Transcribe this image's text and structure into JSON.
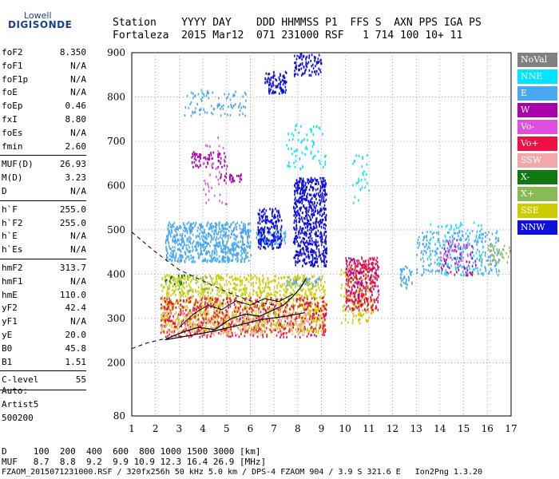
{
  "logo": {
    "top": "Lowell",
    "main": "DIGISONDE"
  },
  "header": {
    "line1": "Station    YYYY DAY    DDD HHMMSS P1  FFS S  AXN PPS IGA PS",
    "line2": "Fortaleza  2015 Mar12  071 231000 RSF   1 714 100 10+ 11"
  },
  "params": {
    "g1": [
      {
        "name": "foF2",
        "value": "8.350"
      },
      {
        "name": "foF1",
        "value": "N/A"
      },
      {
        "name": "foF1p",
        "value": "N/A"
      },
      {
        "name": "foE",
        "value": "N/A"
      },
      {
        "name": "foEp",
        "value": "0.46"
      },
      {
        "name": "fxI",
        "value": "8.80"
      },
      {
        "name": "foEs",
        "value": "N/A"
      },
      {
        "name": "fmin",
        "value": "2.60"
      }
    ],
    "g2": [
      {
        "name": "MUF(D)",
        "value": "26.93"
      },
      {
        "name": "M(D)",
        "value": "3.23"
      },
      {
        "name": "D",
        "value": "N/A"
      }
    ],
    "g3": [
      {
        "name": "h`F",
        "value": "255.0"
      },
      {
        "name": "h`F2",
        "value": "255.0"
      },
      {
        "name": "h`E",
        "value": "N/A"
      },
      {
        "name": "h`Es",
        "value": "N/A"
      }
    ],
    "g4": [
      {
        "name": "hmF2",
        "value": "313.7"
      },
      {
        "name": "hmF1",
        "value": "N/A"
      },
      {
        "name": "hmE",
        "value": "110.0"
      },
      {
        "name": "yF2",
        "value": "42.4"
      },
      {
        "name": "yF1",
        "value": "N/A"
      },
      {
        "name": "yE",
        "value": "20.0"
      },
      {
        "name": "B0",
        "value": "45.8"
      },
      {
        "name": "B1",
        "value": "1.51"
      }
    ],
    "g5": [
      {
        "name": "C-level",
        "value": "55"
      }
    ]
  },
  "side_info": {
    "line1": "Auto:",
    "line2": "Artist5",
    "line3": "500200"
  },
  "legend": [
    {
      "label": "NoVal",
      "color": "#808080"
    },
    {
      "label": "NNE",
      "color": "#00e5ff"
    },
    {
      "label": "E",
      "color": "#4aa8f0"
    },
    {
      "label": "W",
      "color": "#aa00aa"
    },
    {
      "label": "Vo-",
      "color": "#e050e0"
    },
    {
      "label": "Vo+",
      "color": "#ee1144"
    },
    {
      "label": "SSW",
      "color": "#f2a8a8"
    },
    {
      "label": "X-",
      "color": "#117711"
    },
    {
      "label": "X+",
      "color": "#88bb55"
    },
    {
      "label": "SSE",
      "color": "#cccc00"
    },
    {
      "label": "NNW",
      "color": "#1010dd"
    }
  ],
  "bottom": {
    "d_line": "D     100  200  400  600  800 1000 1500 3000 [km]",
    "muf_line": "MUF   8.7  8.8  9.2  9.9 10.9 12.3 16.4 26.9 [MHz]",
    "file_line": "FZAOM_2015071231000.RSF / 320fx256h 50 kHz 5.0 km / DPS-4 FZAOM 904 / 3.9 S 321.6 E   Ion2Png 1.3.20"
  },
  "chart_data": {
    "type": "scatter",
    "title": "",
    "xlabel": "",
    "ylabel": "",
    "xlim": [
      1,
      17
    ],
    "ylim": [
      80,
      900
    ],
    "x_ticks": [
      1,
      2,
      3,
      4,
      5,
      6,
      7,
      8,
      9,
      10,
      11,
      12,
      13,
      14,
      15,
      16,
      17
    ],
    "y_ticks": [
      80,
      200,
      300,
      400,
      500,
      600,
      700,
      800,
      900
    ],
    "grid": true,
    "series": [
      {
        "name": "E",
        "color": "#4aa8f0",
        "clusters": [
          {
            "x": [
              2.4,
              6.0
            ],
            "y": [
              430,
              520
            ],
            "n": 700
          },
          {
            "x": [
              3.2,
              5.8
            ],
            "y": [
              760,
              820
            ],
            "n": 90
          },
          {
            "x": [
              6.2,
              7.5
            ],
            "y": [
              470,
              500
            ],
            "n": 80
          },
          {
            "x": [
              7.5,
              9.0
            ],
            "y": [
              375,
              395
            ],
            "n": 60
          },
          {
            "x": [
              12.3,
              12.8
            ],
            "y": [
              370,
              420
            ],
            "n": 40
          },
          {
            "x": [
              13.0,
              16.5
            ],
            "y": [
              400,
              500
            ],
            "n": 260
          }
        ]
      },
      {
        "name": "NNW",
        "color": "#1010dd",
        "clusters": [
          {
            "x": [
              7.8,
              9.2
            ],
            "y": [
              420,
              620
            ],
            "n": 650
          },
          {
            "x": [
              6.3,
              7.3
            ],
            "y": [
              460,
              550
            ],
            "n": 200
          },
          {
            "x": [
              6.6,
              7.5
            ],
            "y": [
              810,
              860
            ],
            "n": 90
          },
          {
            "x": [
              7.8,
              9.0
            ],
            "y": [
              850,
              900
            ],
            "n": 90
          }
        ]
      },
      {
        "name": "SSE",
        "color": "#cccc00",
        "clusters": [
          {
            "x": [
              2.2,
              9.2
            ],
            "y": [
              270,
              400
            ],
            "n": 1300
          },
          {
            "x": [
              9.8,
              11.2
            ],
            "y": [
              290,
              420
            ],
            "n": 160
          }
        ]
      },
      {
        "name": "Vo+",
        "color": "#ee1144",
        "clusters": [
          {
            "x": [
              2.2,
              9.2
            ],
            "y": [
              260,
              350
            ],
            "n": 600
          },
          {
            "x": [
              10.0,
              11.4
            ],
            "y": [
              320,
              440
            ],
            "n": 260
          }
        ]
      },
      {
        "name": "SSW",
        "color": "#f2a8a8",
        "clusters": [
          {
            "x": [
              2.2,
              8.5
            ],
            "y": [
              265,
              320
            ],
            "n": 220
          }
        ]
      },
      {
        "name": "W",
        "color": "#aa00aa",
        "clusters": [
          {
            "x": [
              3.5,
              5.0
            ],
            "y": [
              640,
              680
            ],
            "n": 70
          },
          {
            "x": [
              4.7,
              5.6
            ],
            "y": [
              610,
              630
            ],
            "n": 30
          },
          {
            "x": [
              10.0,
              11.4
            ],
            "y": [
              330,
              440
            ],
            "n": 80
          },
          {
            "x": [
              14.0,
              15.5
            ],
            "y": [
              400,
              480
            ],
            "n": 60
          }
        ]
      },
      {
        "name": "NNE",
        "color": "#00e5ff",
        "clusters": [
          {
            "x": [
              7.5,
              9.2
            ],
            "y": [
              640,
              740
            ],
            "n": 70
          },
          {
            "x": [
              10.3,
              11.0
            ],
            "y": [
              560,
              680
            ],
            "n": 30
          },
          {
            "x": [
              13.5,
              15.8
            ],
            "y": [
              400,
              520
            ],
            "n": 90
          }
        ]
      },
      {
        "name": "X+",
        "color": "#88bb55",
        "clusters": [
          {
            "x": [
              2.3,
              4.5
            ],
            "y": [
              360,
              400
            ],
            "n": 40
          },
          {
            "x": [
              16.0,
              17.0
            ],
            "y": [
              420,
              470
            ],
            "n": 40
          }
        ]
      },
      {
        "name": "Vo-",
        "color": "#e050e0",
        "clusters": [
          {
            "x": [
              4.0,
              5.0
            ],
            "y": [
              560,
              720
            ],
            "n": 40
          },
          {
            "x": [
              14.0,
              15.2
            ],
            "y": [
              420,
              480
            ],
            "n": 30
          }
        ]
      },
      {
        "name": "X-",
        "color": "#117711",
        "clusters": [
          {
            "x": [
              2.3,
              3.2
            ],
            "y": [
              380,
              400
            ],
            "n": 15
          }
        ]
      }
    ],
    "trace_upper": [
      [
        2.5,
        255
      ],
      [
        3.2,
        270
      ],
      [
        3.8,
        280
      ],
      [
        4.5,
        275
      ],
      [
        5.2,
        300
      ],
      [
        5.8,
        310
      ],
      [
        6.4,
        305
      ],
      [
        7.0,
        320
      ],
      [
        7.4,
        330
      ],
      [
        7.8,
        350
      ],
      [
        8.1,
        368
      ],
      [
        8.35,
        390
      ]
    ],
    "trace_lower": [
      [
        2.4,
        252
      ],
      [
        3.5,
        262
      ],
      [
        4.5,
        272
      ],
      [
        5.5,
        285
      ],
      [
        6.5,
        298
      ],
      [
        7.5,
        305
      ],
      [
        8.3,
        313
      ]
    ],
    "trace_inner": [
      [
        3.0,
        280
      ],
      [
        3.6,
        310
      ],
      [
        4.2,
        330
      ],
      [
        4.8,
        320
      ],
      [
        5.4,
        340
      ],
      [
        6.0,
        330
      ],
      [
        6.6,
        345
      ],
      [
        7.2,
        338
      ],
      [
        7.8,
        355
      ]
    ],
    "profile_dashed_upper": [
      [
        1.0,
        495
      ],
      [
        2.0,
        450
      ],
      [
        3.0,
        410
      ],
      [
        4.0,
        385
      ],
      [
        5.0,
        360
      ],
      [
        6.0,
        340
      ],
      [
        7.0,
        330
      ]
    ],
    "profile_dashed_lower": [
      [
        1.0,
        232
      ],
      [
        1.6,
        244
      ],
      [
        2.2,
        252
      ],
      [
        2.6,
        256
      ]
    ]
  }
}
